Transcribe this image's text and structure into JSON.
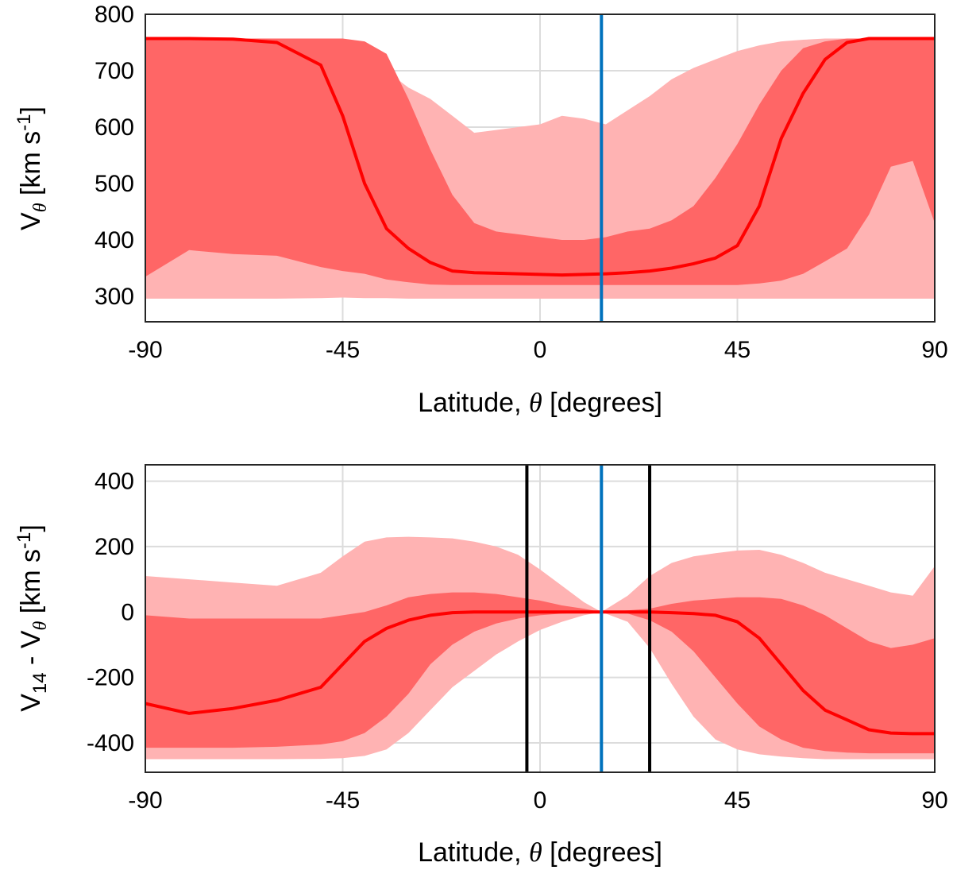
{
  "chart_data": [
    {
      "type": "area",
      "panel": "top",
      "xlabel": "Latitude, θ [degrees]",
      "ylabel": "V_θ [km s^-1]",
      "xlim": [
        -90,
        90
      ],
      "ylim": [
        255,
        800
      ],
      "xticks": [
        -90,
        -45,
        0,
        45,
        90
      ],
      "yticks": [
        300,
        400,
        500,
        600,
        700,
        800
      ],
      "grid": true,
      "colors": {
        "outer_band": "#ffb3b3",
        "inner_band": "#ff6666",
        "median": "#ff0000",
        "marker": "#0072bd"
      },
      "x": [
        -90,
        -80,
        -70,
        -60,
        -50,
        -45,
        -40,
        -35,
        -30,
        -25,
        -20,
        -15,
        -10,
        -5,
        0,
        5,
        10,
        15,
        20,
        25,
        30,
        35,
        40,
        45,
        50,
        55,
        60,
        65,
        70,
        75,
        80,
        85,
        90
      ],
      "series": [
        {
          "role": "outer_upper",
          "values": [
            757,
            757,
            757,
            757,
            756,
            752,
            735,
            700,
            670,
            650,
            620,
            590,
            595,
            600,
            605,
            620,
            615,
            605,
            630,
            655,
            685,
            705,
            720,
            735,
            745,
            752,
            755,
            757,
            757,
            757,
            757,
            757,
            757
          ]
        },
        {
          "role": "inner_upper",
          "values": [
            757,
            757,
            757,
            757,
            757,
            757,
            752,
            730,
            650,
            560,
            480,
            430,
            415,
            410,
            405,
            400,
            400,
            405,
            415,
            420,
            435,
            460,
            510,
            570,
            640,
            700,
            740,
            752,
            757,
            757,
            757,
            757,
            757
          ]
        },
        {
          "role": "median",
          "values": [
            757,
            757,
            756,
            750,
            710,
            620,
            500,
            420,
            385,
            360,
            345,
            342,
            341,
            340,
            339,
            338,
            339,
            340,
            342,
            345,
            350,
            358,
            368,
            390,
            460,
            580,
            660,
            720,
            750,
            757,
            757,
            757,
            757
          ]
        },
        {
          "role": "inner_lower",
          "values": [
            335,
            382,
            375,
            372,
            352,
            345,
            340,
            330,
            325,
            321,
            320,
            320,
            320,
            320,
            320,
            320,
            320,
            320,
            320,
            320,
            320,
            320,
            320,
            320,
            323,
            328,
            340,
            362,
            385,
            445,
            530,
            540,
            430
          ]
        },
        {
          "role": "outer_lower",
          "values": [
            296,
            296,
            296,
            296,
            297,
            298,
            297,
            297,
            296,
            296,
            296,
            296,
            296,
            296,
            296,
            296,
            296,
            296,
            296,
            296,
            296,
            296,
            296,
            296,
            296,
            296,
            296,
            296,
            296,
            296,
            296,
            296,
            296
          ]
        }
      ],
      "vertical_lines": [
        {
          "x": 14,
          "color": "#0072bd"
        }
      ]
    },
    {
      "type": "area",
      "panel": "bottom",
      "xlabel": "Latitude, θ [degrees]",
      "ylabel": "V_14 - V_θ [km s^-1]",
      "xlim": [
        -90,
        90
      ],
      "ylim": [
        -490,
        450
      ],
      "xticks": [
        -90,
        -45,
        0,
        45,
        90
      ],
      "yticks": [
        -400,
        -200,
        0,
        200,
        400
      ],
      "grid": true,
      "colors": {
        "outer_band": "#ffb3b3",
        "inner_band": "#ff6666",
        "median": "#ff0000",
        "marker": "#0072bd",
        "bounds": "#000000"
      },
      "x": [
        -90,
        -80,
        -70,
        -60,
        -50,
        -45,
        -40,
        -35,
        -30,
        -25,
        -20,
        -15,
        -10,
        -5,
        0,
        5,
        10,
        14,
        20,
        25,
        30,
        35,
        40,
        45,
        50,
        55,
        60,
        65,
        70,
        75,
        80,
        85,
        90
      ],
      "series": [
        {
          "role": "outer_upper",
          "values": [
            110,
            100,
            90,
            80,
            120,
            170,
            215,
            228,
            230,
            228,
            225,
            215,
            200,
            175,
            130,
            80,
            30,
            0,
            50,
            110,
            150,
            170,
            180,
            188,
            190,
            175,
            150,
            120,
            100,
            80,
            60,
            50,
            140
          ]
        },
        {
          "role": "inner_upper",
          "values": [
            -10,
            -20,
            -20,
            -20,
            -20,
            -10,
            0,
            20,
            45,
            55,
            60,
            60,
            55,
            45,
            35,
            20,
            10,
            0,
            5,
            10,
            25,
            35,
            40,
            45,
            45,
            40,
            20,
            -10,
            -50,
            -90,
            -110,
            -100,
            -80
          ]
        },
        {
          "role": "median",
          "values": [
            -280,
            -310,
            -295,
            -270,
            -230,
            -160,
            -90,
            -50,
            -25,
            -10,
            -2,
            0,
            0,
            0,
            0,
            0,
            0,
            0,
            0,
            0,
            -2,
            -5,
            -10,
            -30,
            -80,
            -160,
            -240,
            -300,
            -330,
            -360,
            -370,
            -372,
            -372
          ]
        },
        {
          "role": "inner_lower",
          "values": [
            -415,
            -415,
            -415,
            -412,
            -405,
            -395,
            -370,
            -320,
            -250,
            -160,
            -100,
            -60,
            -35,
            -20,
            -10,
            -5,
            -2,
            0,
            -5,
            -25,
            -60,
            -120,
            -200,
            -280,
            -350,
            -390,
            -415,
            -425,
            -430,
            -432,
            -432,
            -432,
            -432
          ]
        },
        {
          "role": "outer_lower",
          "values": [
            -450,
            -450,
            -450,
            -450,
            -449,
            -447,
            -440,
            -420,
            -370,
            -300,
            -230,
            -180,
            -130,
            -90,
            -55,
            -30,
            -10,
            0,
            -30,
            -110,
            -220,
            -320,
            -390,
            -420,
            -435,
            -442,
            -447,
            -450,
            -450,
            -450,
            -450,
            -450,
            -450
          ]
        }
      ],
      "vertical_lines": [
        {
          "x": -3,
          "color": "#000000"
        },
        {
          "x": 14,
          "color": "#0072bd"
        },
        {
          "x": 25,
          "color": "#000000"
        }
      ]
    }
  ]
}
